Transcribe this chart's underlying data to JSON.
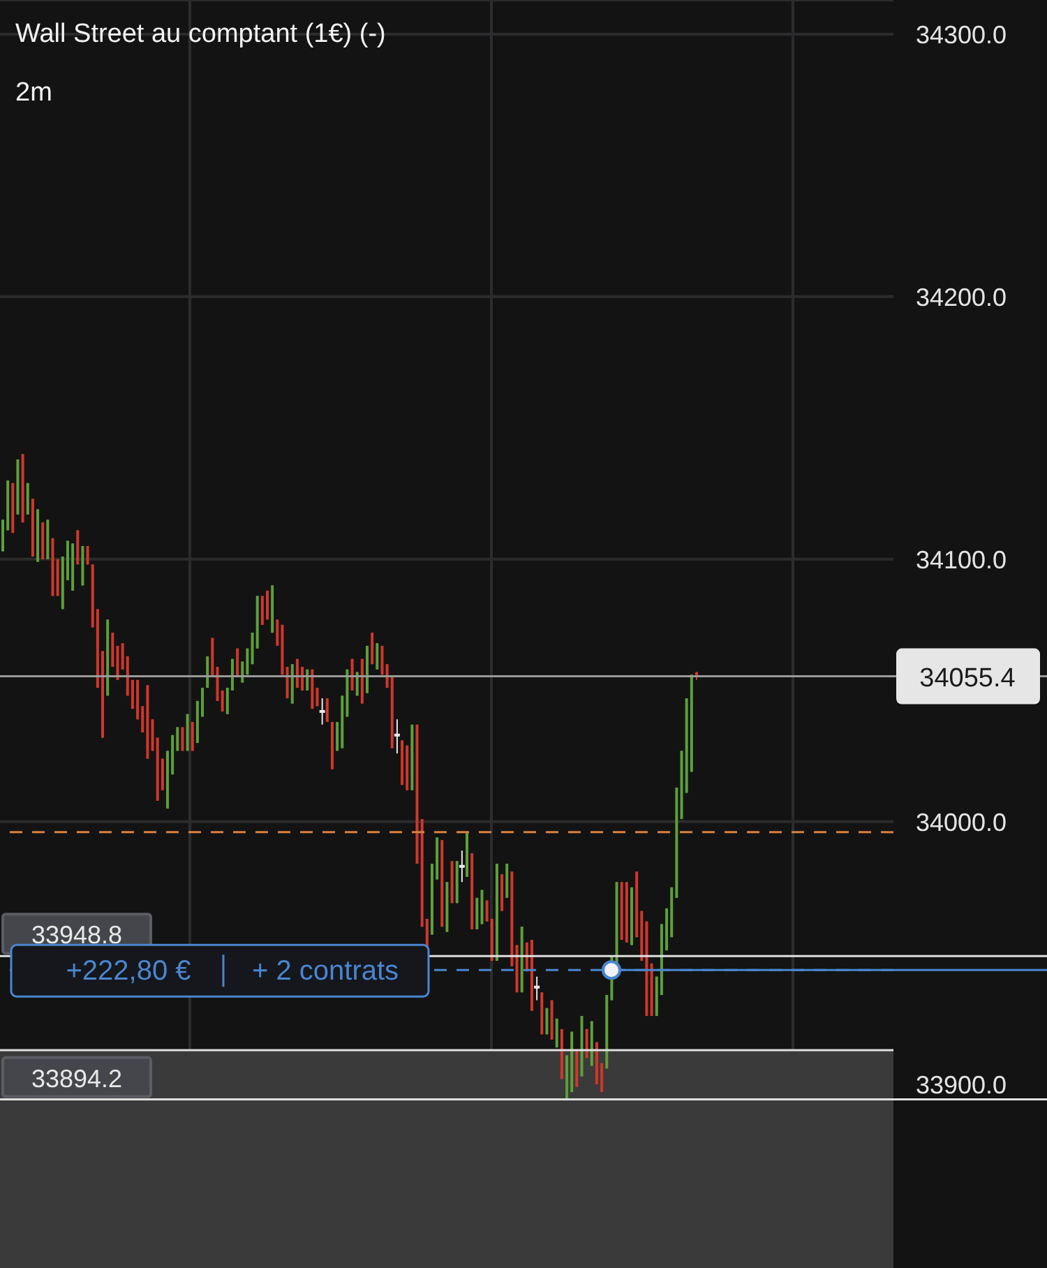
{
  "chart_data": {
    "type": "candlestick",
    "title": "Wall Street au comptant (1€) (-)",
    "subtitle": "2m",
    "categories": [
      null,
      null,
      null,
      null,
      null,
      null,
      null,
      null,
      null,
      null,
      null,
      null,
      null,
      null,
      null,
      null,
      null,
      null,
      null,
      null,
      null,
      null,
      null,
      null,
      null,
      null,
      null,
      null,
      null,
      null,
      null,
      null,
      null,
      null,
      null,
      null,
      null,
      null,
      null,
      null,
      null,
      null,
      null,
      null,
      null,
      null,
      null,
      null,
      null,
      null,
      null,
      null,
      null,
      null,
      null,
      null,
      null,
      null,
      null,
      null,
      null,
      null,
      null,
      null,
      null,
      null,
      null,
      null,
      null,
      null,
      null,
      null,
      null,
      null,
      null,
      null,
      null,
      null,
      null,
      null,
      null,
      null,
      null,
      null,
      null,
      null,
      null,
      null,
      null,
      null,
      null,
      null,
      null,
      null,
      null,
      null,
      null,
      null,
      null,
      null,
      null,
      null,
      null,
      null,
      null,
      null,
      null,
      null,
      null,
      null,
      null,
      null,
      null,
      null,
      null,
      null,
      null,
      null,
      null,
      null,
      null,
      null,
      null,
      null,
      null,
      null,
      null,
      null,
      null,
      null,
      null,
      null,
      null,
      null,
      null,
      null,
      null,
      null,
      null,
      null,
      null,
      null,
      null,
      null,
      null,
      null,
      null,
      null,
      null,
      null,
      null,
      null,
      null,
      null,
      null,
      null,
      null,
      null,
      null,
      null,
      null,
      null,
      null,
      null,
      null,
      null,
      null,
      null,
      null,
      null,
      null,
      null,
      null,
      null,
      null,
      null,
      null,
      null,
      null
    ],
    "ohlc": [
      [
        34103,
        34115,
        34103,
        34115
      ],
      [
        34111,
        34130,
        34111,
        34130
      ],
      [
        34129,
        34129,
        34110,
        34110
      ],
      [
        34117,
        34138,
        34117,
        34138
      ],
      [
        34140,
        34140,
        34114,
        34114
      ],
      [
        34117,
        34129,
        34117,
        34129
      ],
      [
        34123,
        34123,
        34101,
        34101
      ],
      [
        34099,
        34119,
        34099,
        34119
      ],
      [
        34114,
        34114,
        34100,
        34100
      ],
      [
        34100,
        34115,
        34100,
        34115
      ],
      [
        34108,
        34108,
        34086,
        34086
      ],
      [
        34100,
        34100,
        34086,
        34086
      ],
      [
        34081,
        34101,
        34081,
        34101
      ],
      [
        34092,
        34107,
        34092,
        34107
      ],
      [
        34088,
        34106,
        34088,
        34106
      ],
      [
        34111,
        34111,
        34098,
        34098
      ],
      [
        34090,
        34105,
        34090,
        34105
      ],
      [
        34105,
        34105,
        34098,
        34098
      ],
      [
        34098,
        34098,
        34074,
        34074
      ],
      [
        34081,
        34081,
        34051,
        34051
      ],
      [
        34065,
        34065,
        34032,
        34032
      ],
      [
        34048,
        34077,
        34048,
        34077
      ],
      [
        34072,
        34072,
        34059,
        34059
      ],
      [
        34067,
        34067,
        34054,
        34054
      ],
      [
        34068,
        34068,
        34058,
        34058
      ],
      [
        34063,
        34063,
        34048,
        34048
      ],
      [
        34054,
        34054,
        34043,
        34043
      ],
      [
        34054,
        34054,
        34039,
        34039
      ],
      [
        34044,
        34044,
        34034,
        34034
      ],
      [
        34052,
        34052,
        34024,
        34024
      ],
      [
        34039,
        34039,
        34027,
        34027
      ],
      [
        34032,
        34032,
        34008,
        34008
      ],
      [
        34024,
        34024,
        34012,
        34012
      ],
      [
        34005,
        34027,
        34005,
        34027
      ],
      [
        34018,
        34033,
        34018,
        34033
      ],
      [
        34027,
        34036,
        34027,
        34036
      ],
      [
        34036,
        34036,
        34027,
        34027
      ],
      [
        34027,
        34041,
        34027,
        34041
      ],
      [
        34038,
        34038,
        34027,
        34027
      ],
      [
        34030,
        34046,
        34030,
        34046
      ],
      [
        34040,
        34051,
        34040,
        34051
      ],
      [
        34051,
        34063,
        34051,
        34063
      ],
      [
        34070,
        34070,
        34055,
        34055
      ],
      [
        34059,
        34059,
        34046,
        34046
      ],
      [
        34050,
        34050,
        34042,
        34042
      ],
      [
        34041,
        34051,
        34041,
        34051
      ],
      [
        34050,
        34062,
        34050,
        34062
      ],
      [
        34066,
        34066,
        34055,
        34055
      ],
      [
        34053,
        34061,
        34053,
        34061
      ],
      [
        34056,
        34066,
        34056,
        34066
      ],
      [
        34060,
        34072,
        34060,
        34072
      ],
      [
        34066,
        34086,
        34066,
        34086
      ],
      [
        34086,
        34086,
        34075,
        34075
      ],
      [
        34088,
        34088,
        34077,
        34077
      ],
      [
        34072,
        34090,
        34072,
        34090
      ],
      [
        34077,
        34077,
        34067,
        34067
      ],
      [
        34075,
        34075,
        34056,
        34056
      ],
      [
        34059,
        34059,
        34047,
        34047
      ],
      [
        34045,
        34060,
        34045,
        34060
      ],
      [
        34062,
        34062,
        34051,
        34051
      ],
      [
        34059,
        34059,
        34050,
        34050
      ],
      [
        34050,
        34058,
        34050,
        34058
      ],
      [
        34058,
        34058,
        34043,
        34043
      ],
      [
        34051,
        34051,
        34044,
        34044
      ],
      [
        34042,
        34047,
        34037,
        34042
      ],
      [
        34047,
        34047,
        34038,
        34038
      ],
      [
        34038,
        34038,
        34020,
        34020
      ],
      [
        34027,
        34038,
        34027,
        34038
      ],
      [
        34028,
        34048,
        34028,
        34048
      ],
      [
        34040,
        34058,
        34040,
        34058
      ],
      [
        34062,
        34062,
        34050,
        34050
      ],
      [
        34048,
        34057,
        34048,
        34057
      ],
      [
        34062,
        34062,
        34045,
        34045
      ],
      [
        34049,
        34067,
        34049,
        34067
      ],
      [
        34072,
        34072,
        34060,
        34060
      ],
      [
        34058,
        34068,
        34058,
        34068
      ],
      [
        34067,
        34067,
        34056,
        34056
      ],
      [
        34060,
        34060,
        34051,
        34051
      ],
      [
        34055,
        34055,
        34028,
        34028
      ],
      [
        34033,
        34039,
        34026,
        34033
      ],
      [
        34031,
        34031,
        34014,
        34014
      ],
      [
        34029,
        34029,
        34012,
        34012
      ],
      [
        34012,
        34037,
        34012,
        34037
      ],
      [
        34037,
        34037,
        33984,
        33984
      ],
      [
        34001,
        34001,
        33960,
        33960
      ],
      [
        33963,
        33963,
        33951,
        33951
      ],
      [
        33957,
        33984,
        33957,
        33984
      ],
      [
        33978,
        33994,
        33978,
        33994
      ],
      [
        33993,
        33993,
        33960,
        33960
      ],
      [
        33958,
        33977,
        33958,
        33977
      ],
      [
        33985,
        33985,
        33969,
        33969
      ],
      [
        33969,
        33985,
        33969,
        33985
      ],
      [
        33983,
        33989,
        33977,
        33983
      ],
      [
        33979,
        33996,
        33979,
        33996
      ],
      [
        33988,
        33988,
        33959,
        33959
      ],
      [
        33959,
        33971,
        33959,
        33971
      ],
      [
        33961,
        33974,
        33961,
        33974
      ],
      [
        33970,
        33970,
        33962,
        33962
      ],
      [
        33963,
        33963,
        33947,
        33947
      ],
      [
        33947,
        33984,
        33947,
        33984
      ],
      [
        33980,
        33980,
        33966,
        33966
      ],
      [
        33971,
        33984,
        33971,
        33984
      ],
      [
        33981,
        33981,
        33945,
        33945
      ],
      [
        33953,
        33953,
        33935,
        33935
      ],
      [
        33935,
        33960,
        33935,
        33960
      ],
      [
        33954,
        33954,
        33943,
        33943
      ],
      [
        33955,
        33955,
        33928,
        33928
      ],
      [
        33937,
        33941,
        33932,
        33937
      ],
      [
        33935,
        33935,
        33919,
        33919
      ],
      [
        33919,
        33929,
        33919,
        33929
      ],
      [
        33932,
        33932,
        33917,
        33917
      ],
      [
        33914,
        33925,
        33914,
        33925
      ],
      [
        33921,
        33921,
        33902,
        33902
      ],
      [
        33894,
        33911,
        33894,
        33911
      ],
      [
        33897,
        33920,
        33897,
        33920
      ],
      [
        33913,
        33913,
        33899,
        33899
      ],
      [
        33903,
        33926,
        33903,
        33926
      ],
      [
        33921,
        33921,
        33910,
        33910
      ],
      [
        33907,
        33924,
        33907,
        33924
      ],
      [
        33916,
        33916,
        33900,
        33900
      ],
      [
        33908,
        33908,
        33897,
        33897
      ],
      [
        33906,
        33934,
        33906,
        33934
      ],
      [
        33932,
        33949,
        33932,
        33949
      ],
      [
        33941,
        33977,
        33941,
        33977
      ],
      [
        33977,
        33977,
        33955,
        33955
      ],
      [
        33977,
        33977,
        33954,
        33954
      ],
      [
        33953,
        33975,
        33953,
        33975
      ],
      [
        33981,
        33981,
        33956,
        33956
      ],
      [
        33966,
        33966,
        33947,
        33947
      ],
      [
        33962,
        33962,
        33926,
        33926
      ],
      [
        33946,
        33946,
        33926,
        33926
      ],
      [
        33926,
        33941,
        33926,
        33941
      ],
      [
        33934,
        33961,
        33934,
        33961
      ],
      [
        33951,
        33967,
        33951,
        33967
      ],
      [
        33956,
        33975,
        33956,
        33975
      ],
      [
        33971,
        34013,
        33971,
        34013
      ],
      [
        34001,
        34027,
        34001,
        34027
      ],
      [
        34011,
        34047,
        34011,
        34047
      ],
      [
        34019,
        34056,
        34019,
        34056
      ],
      [
        34057,
        34057,
        34054,
        34055.4
      ],
      null,
      null,
      null,
      null,
      null,
      null,
      null,
      null,
      null,
      null,
      null,
      null,
      null,
      null,
      null,
      null,
      null,
      null,
      null,
      null,
      null,
      null,
      null,
      null,
      null,
      null,
      null,
      null,
      null,
      null,
      null,
      null,
      null,
      null,
      null,
      null,
      null,
      null,
      null
    ],
    "colors": [
      "#5da03a",
      "#5da03a",
      "#d0372b",
      "#5da03a",
      "#d0372b",
      "#5da03a",
      "#d0372b",
      "#5da03a",
      "#d0372b",
      "#5da03a",
      "#d0372b",
      "#d0372b",
      "#5da03a",
      "#5da03a",
      "#5da03a",
      "#d0372b",
      "#5da03a",
      "#d0372b",
      "#d0372b",
      "#d0372b",
      "#d0372b",
      "#5da03a",
      "#d0372b",
      "#d0372b",
      "#d0372b",
      "#d0372b",
      "#d0372b",
      "#d0372b",
      "#d0372b",
      "#d0372b",
      "#d0372b",
      "#d0372b",
      "#d0372b",
      "#5da03a",
      "#5da03a",
      "#5da03a",
      "#d0372b",
      "#5da03a",
      "#d0372b",
      "#5da03a",
      "#5da03a",
      "#5da03a",
      "#d0372b",
      "#d0372b",
      "#d0372b",
      "#5da03a",
      "#5da03a",
      "#d0372b",
      "#5da03a",
      "#5da03a",
      "#5da03a",
      "#5da03a",
      "#d0372b",
      "#d0372b",
      "#5da03a",
      "#d0372b",
      "#d0372b",
      "#d0372b",
      "#5da03a",
      "#d0372b",
      "#d0372b",
      "#5da03a",
      "#d0372b",
      "#d0372b",
      "#e8e8e8",
      "#d0372b",
      "#d0372b",
      "#5da03a",
      "#5da03a",
      "#5da03a",
      "#d0372b",
      "#5da03a",
      "#d0372b",
      "#5da03a",
      "#d0372b",
      "#5da03a",
      "#d0372b",
      "#d0372b",
      "#d0372b",
      "#e8e8e8",
      "#d0372b",
      "#d0372b",
      "#5da03a",
      "#d0372b",
      "#d0372b",
      "#d0372b",
      "#5da03a",
      "#5da03a",
      "#d0372b",
      "#5da03a",
      "#d0372b",
      "#5da03a",
      "#e8e8e8",
      "#5da03a",
      "#d0372b",
      "#5da03a",
      "#5da03a",
      "#d0372b",
      "#d0372b",
      "#5da03a",
      "#d0372b",
      "#5da03a",
      "#d0372b",
      "#d0372b",
      "#5da03a",
      "#d0372b",
      "#d0372b",
      "#e8e8e8",
      "#d0372b",
      "#5da03a",
      "#d0372b",
      "#5da03a",
      "#d0372b",
      "#5da03a",
      "#5da03a",
      "#d0372b",
      "#5da03a",
      "#d0372b",
      "#5da03a",
      "#d0372b",
      "#d0372b",
      "#5da03a",
      "#5da03a",
      "#5da03a",
      "#d0372b",
      "#d0372b",
      "#5da03a",
      "#d0372b",
      "#d0372b",
      "#d0372b",
      "#d0372b",
      "#5da03a",
      "#5da03a",
      "#5da03a",
      "#5da03a",
      "#5da03a",
      "#5da03a",
      "#5da03a",
      "#5da03a",
      "#d0372b",
      null,
      null,
      null,
      null,
      null,
      null,
      null,
      null,
      null,
      null,
      null,
      null,
      null,
      null,
      null,
      null,
      null,
      null,
      null,
      null,
      null,
      null,
      null,
      null,
      null,
      null,
      null,
      null,
      null,
      null,
      null,
      null,
      null,
      null,
      null,
      null,
      null,
      null,
      null
    ],
    "ylim": [
      33830,
      34313
    ],
    "yticks": [
      {
        "value": 33900,
        "label": "33900.0"
      },
      {
        "value": 34000,
        "label": "34000.0"
      },
      {
        "value": 34100,
        "label": "34100.0"
      },
      {
        "value": 34200,
        "label": "34200.0"
      },
      {
        "value": 34300,
        "label": "34300.0"
      }
    ],
    "tick_labels": "y",
    "grid": true,
    "ref_lines": [
      {
        "axis": "y",
        "value": 34055.4,
        "label": "34055.4",
        "color": "#9a9a9a",
        "line_style": "solid"
      },
      {
        "axis": "y",
        "value": 33996,
        "color": "#d9803f",
        "line_style": "dashed"
      },
      {
        "axis": "y",
        "value": 33948.8,
        "label": "33948.8",
        "color": "#e0e0e0",
        "line_style": "solid"
      },
      {
        "axis": "y",
        "value": 33943.5,
        "label": "+222,80 €",
        "color": "#4a86d0",
        "line_style": "dashed"
      },
      {
        "axis": "y",
        "value": 33913,
        "color": "#e0e0e0",
        "line_style": "solid"
      },
      {
        "axis": "y",
        "value": 33894.2,
        "label": "33894.2",
        "color": "#e0e0e0",
        "line_style": "solid"
      }
    ],
    "bands": [
      {
        "axis": "y",
        "from": 33830,
        "to": 33913,
        "color": "#3a3a3a"
      }
    ],
    "annotations": [
      "+ 2 contrats"
    ]
  }
}
